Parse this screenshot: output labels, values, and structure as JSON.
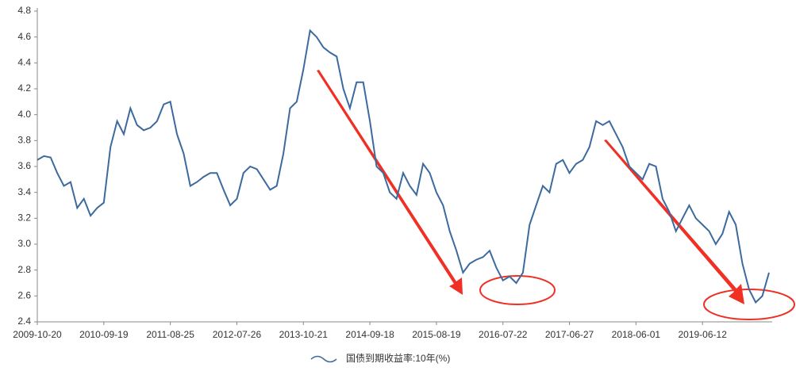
{
  "chart_data": {
    "type": "line",
    "categories": [
      "2009-10-20",
      null,
      null,
      null,
      null,
      null,
      null,
      null,
      null,
      null,
      "2010-09-19",
      null,
      null,
      null,
      null,
      null,
      null,
      null,
      null,
      null,
      "2011-08-25",
      null,
      null,
      null,
      null,
      null,
      null,
      null,
      null,
      null,
      "2012-07-26",
      null,
      null,
      null,
      null,
      null,
      null,
      null,
      null,
      null,
      "2013-10-21",
      null,
      null,
      null,
      null,
      null,
      null,
      null,
      null,
      null,
      "2014-09-18",
      null,
      null,
      null,
      null,
      null,
      null,
      null,
      null,
      null,
      "2015-08-19",
      null,
      null,
      null,
      null,
      null,
      null,
      null,
      null,
      null,
      "2016-07-22",
      null,
      null,
      null,
      null,
      null,
      null,
      null,
      null,
      null,
      "2017-06-27",
      null,
      null,
      null,
      null,
      null,
      null,
      null,
      null,
      null,
      "2018-06-01",
      null,
      null,
      null,
      null,
      null,
      null,
      null,
      null,
      null,
      "2019-06-12",
      null,
      null,
      null,
      null,
      null,
      null,
      null,
      null,
      null,
      null
    ],
    "series": [
      {
        "name": "国债到期收益率:10年(%)",
        "color": "#3d6a9e",
        "values": [
          3.65,
          3.68,
          3.67,
          3.55,
          3.45,
          3.48,
          3.28,
          3.35,
          3.22,
          3.28,
          3.32,
          3.75,
          3.95,
          3.85,
          4.05,
          3.92,
          3.88,
          3.9,
          3.95,
          4.08,
          4.1,
          3.85,
          3.7,
          3.45,
          3.48,
          3.52,
          3.55,
          3.55,
          3.42,
          3.3,
          3.35,
          3.55,
          3.6,
          3.58,
          3.5,
          3.42,
          3.45,
          3.7,
          4.05,
          4.1,
          4.35,
          4.65,
          4.6,
          4.52,
          4.48,
          4.45,
          4.2,
          4.05,
          4.25,
          4.25,
          3.95,
          3.6,
          3.55,
          3.4,
          3.35,
          3.55,
          3.45,
          3.38,
          3.62,
          3.55,
          3.4,
          3.3,
          3.1,
          2.95,
          2.78,
          2.85,
          2.88,
          2.9,
          2.95,
          2.82,
          2.72,
          2.75,
          2.7,
          2.78,
          3.15,
          3.3,
          3.45,
          3.4,
          3.62,
          3.65,
          3.55,
          3.62,
          3.65,
          3.75,
          3.95,
          3.92,
          3.95,
          3.85,
          3.75,
          3.6,
          3.55,
          3.5,
          3.62,
          3.6,
          3.35,
          3.25,
          3.1,
          3.2,
          3.3,
          3.2,
          3.15,
          3.1,
          3.0,
          3.08,
          3.25,
          3.15,
          2.85,
          2.65,
          2.55,
          2.6,
          2.78
        ]
      }
    ],
    "ylim": [
      2.4,
      4.8
    ],
    "yticks": [
      2.4,
      2.6,
      2.8,
      {
        "value": 3,
        "label": "3.0"
      },
      3.2,
      3.4,
      3.6,
      3.8,
      {
        "value": 4,
        "label": "4.0"
      },
      4.2,
      4.4,
      4.6,
      4.8
    ]
  }
}
